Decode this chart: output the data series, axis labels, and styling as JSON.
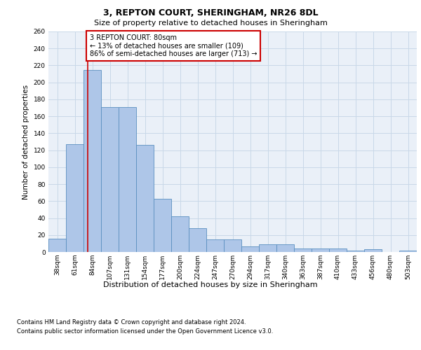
{
  "title1": "3, REPTON COURT, SHERINGHAM, NR26 8DL",
  "title2": "Size of property relative to detached houses in Sheringham",
  "xlabel": "Distribution of detached houses by size in Sheringham",
  "ylabel": "Number of detached properties",
  "categories": [
    "38sqm",
    "61sqm",
    "84sqm",
    "107sqm",
    "131sqm",
    "154sqm",
    "177sqm",
    "200sqm",
    "224sqm",
    "247sqm",
    "270sqm",
    "294sqm",
    "317sqm",
    "340sqm",
    "363sqm",
    "387sqm",
    "410sqm",
    "433sqm",
    "456sqm",
    "480sqm",
    "503sqm"
  ],
  "values": [
    16,
    127,
    215,
    171,
    171,
    126,
    63,
    42,
    28,
    15,
    15,
    7,
    9,
    9,
    4,
    4,
    4,
    2,
    3,
    0,
    2
  ],
  "bar_color": "#aec6e8",
  "bar_edge_color": "#5a8fc0",
  "grid_color": "#c8d8e8",
  "background_color": "#eaf0f8",
  "annotation_text": "3 REPTON COURT: 80sqm\n← 13% of detached houses are smaller (109)\n86% of semi-detached houses are larger (713) →",
  "annotation_box_color": "#ffffff",
  "annotation_border_color": "#cc0000",
  "red_line_color": "#cc0000",
  "ylim": [
    0,
    260
  ],
  "yticks": [
    0,
    20,
    40,
    60,
    80,
    100,
    120,
    140,
    160,
    180,
    200,
    220,
    240,
    260
  ],
  "footer1": "Contains HM Land Registry data © Crown copyright and database right 2024.",
  "footer2": "Contains public sector information licensed under the Open Government Licence v3.0.",
  "title1_fontsize": 9,
  "title2_fontsize": 8,
  "ylabel_fontsize": 7.5,
  "xlabel_fontsize": 8,
  "tick_fontsize": 6.5,
  "footer_fontsize": 6,
  "annot_fontsize": 7
}
